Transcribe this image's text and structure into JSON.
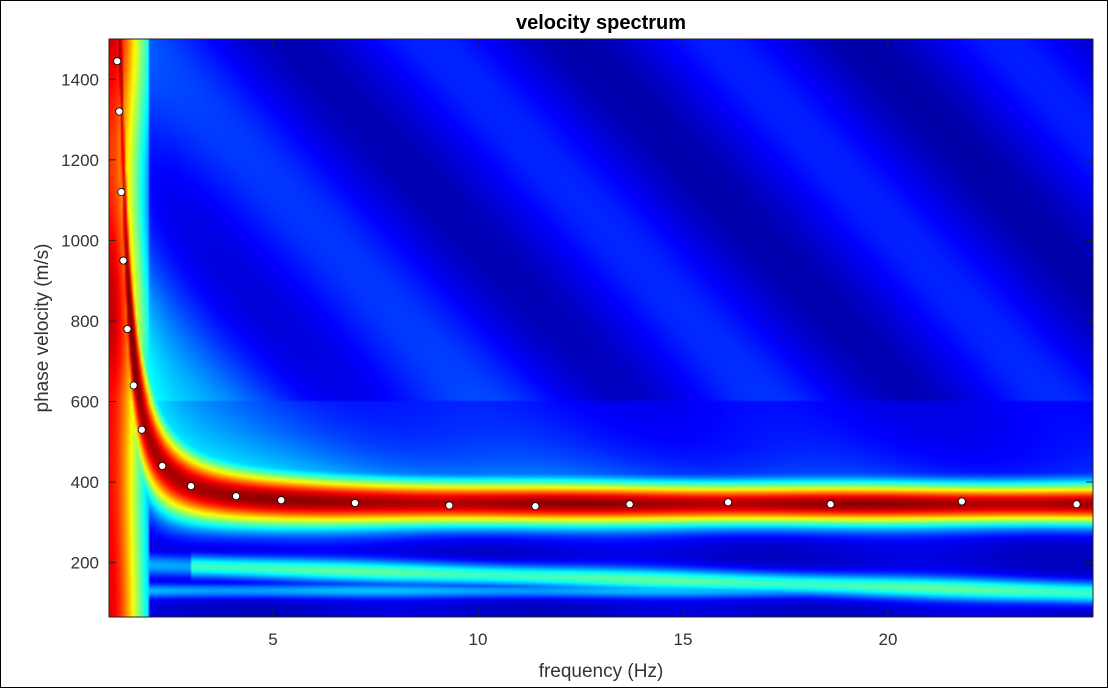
{
  "chart_data": {
    "type": "heatmap",
    "title": "velocity spectrum",
    "xlabel": "frequency (Hz)",
    "ylabel": "phase velocity (m/s)",
    "xlim": [
      1.0,
      25.0
    ],
    "ylim": [
      65,
      1500
    ],
    "xticks": [
      5,
      10,
      15,
      20
    ],
    "yticks": [
      200,
      400,
      600,
      800,
      1000,
      1200,
      1400
    ],
    "grid": false,
    "colormap": "jet",
    "colors": {
      "low": "#00008f",
      "mid": "#00ffff",
      "high": "#800000",
      "points_fill": "#ffffff",
      "points_stroke": "#000000"
    },
    "picked_points": {
      "x": [
        1.2,
        1.25,
        1.3,
        1.35,
        1.45,
        1.6,
        1.8,
        2.3,
        3.0,
        4.1,
        5.2,
        7.0,
        9.3,
        11.4,
        13.7,
        16.1,
        18.6,
        21.8,
        24.6
      ],
      "y": [
        1445,
        1320,
        1120,
        950,
        780,
        640,
        530,
        440,
        390,
        365,
        355,
        348,
        342,
        340,
        345,
        350,
        345,
        352,
        345
      ]
    }
  }
}
